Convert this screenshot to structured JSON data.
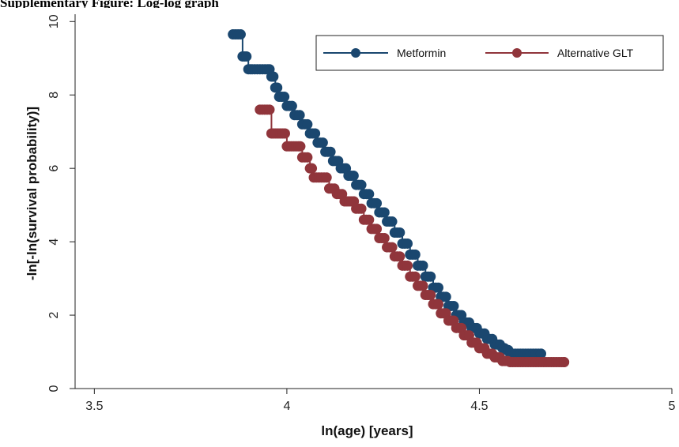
{
  "figure_title": "Supplementary Figure: Log-log graph",
  "chart_data": {
    "type": "line",
    "title": "",
    "xlabel": "ln(age) [years]",
    "ylabel": "-ln[-ln(survival probability)]",
    "xlim": [
      3.45,
      5.0
    ],
    "ylim": [
      0,
      10.2
    ],
    "x_ticks": [
      3.5,
      4,
      4.5,
      5
    ],
    "x_tick_labels": [
      "3.5",
      "4",
      "4.5",
      "5"
    ],
    "y_ticks": [
      0,
      2,
      4,
      6,
      8,
      10
    ],
    "y_tick_labels": [
      "0",
      "2",
      "4",
      "6",
      "8",
      "10"
    ],
    "grid": false,
    "legend_position": "top-right",
    "series": [
      {
        "name": "Metformin",
        "color": "#1a476f",
        "x": [
          3.86,
          3.88,
          3.885,
          3.89,
          3.9,
          3.91,
          3.93,
          3.95,
          3.96,
          3.97,
          3.98,
          4.0,
          4.02,
          4.04,
          4.06,
          4.08,
          4.1,
          4.12,
          4.14,
          4.16,
          4.18,
          4.2,
          4.22,
          4.24,
          4.26,
          4.28,
          4.3,
          4.32,
          4.34,
          4.36,
          4.38,
          4.4,
          4.42,
          4.44,
          4.46,
          4.48,
          4.5,
          4.52,
          4.54,
          4.56,
          4.57,
          4.58,
          4.6,
          4.62,
          4.64,
          4.66
        ],
        "y": [
          9.65,
          9.65,
          9.05,
          9.05,
          8.7,
          8.7,
          8.7,
          8.7,
          8.5,
          8.2,
          7.95,
          7.7,
          7.45,
          7.2,
          6.95,
          6.7,
          6.45,
          6.2,
          6.0,
          5.8,
          5.55,
          5.3,
          5.05,
          4.8,
          4.55,
          4.25,
          3.95,
          3.65,
          3.35,
          3.05,
          2.75,
          2.5,
          2.25,
          2.0,
          1.8,
          1.65,
          1.5,
          1.35,
          1.2,
          1.1,
          1.05,
          0.95,
          0.95,
          0.95,
          0.95,
          0.95
        ]
      },
      {
        "name": "Alternative GLT",
        "color": "#90353b",
        "x": [
          3.93,
          3.955,
          3.96,
          3.965,
          3.995,
          4.0,
          4.03,
          4.04,
          4.06,
          4.07,
          4.09,
          4.11,
          4.13,
          4.15,
          4.18,
          4.2,
          4.22,
          4.24,
          4.26,
          4.28,
          4.3,
          4.32,
          4.34,
          4.36,
          4.38,
          4.4,
          4.42,
          4.44,
          4.46,
          4.48,
          4.5,
          4.52,
          4.54,
          4.56,
          4.58,
          4.6,
          4.62,
          4.64,
          4.66,
          4.68,
          4.7,
          4.72
        ],
        "y": [
          7.6,
          7.6,
          6.95,
          6.95,
          6.95,
          6.6,
          6.6,
          6.3,
          6.0,
          5.75,
          5.75,
          5.45,
          5.3,
          5.1,
          4.9,
          4.6,
          4.35,
          4.1,
          3.85,
          3.6,
          3.35,
          3.05,
          2.8,
          2.55,
          2.3,
          2.05,
          1.85,
          1.65,
          1.45,
          1.25,
          1.1,
          0.95,
          0.85,
          0.75,
          0.72,
          0.72,
          0.72,
          0.72,
          0.72,
          0.72,
          0.72,
          0.72
        ]
      }
    ]
  }
}
